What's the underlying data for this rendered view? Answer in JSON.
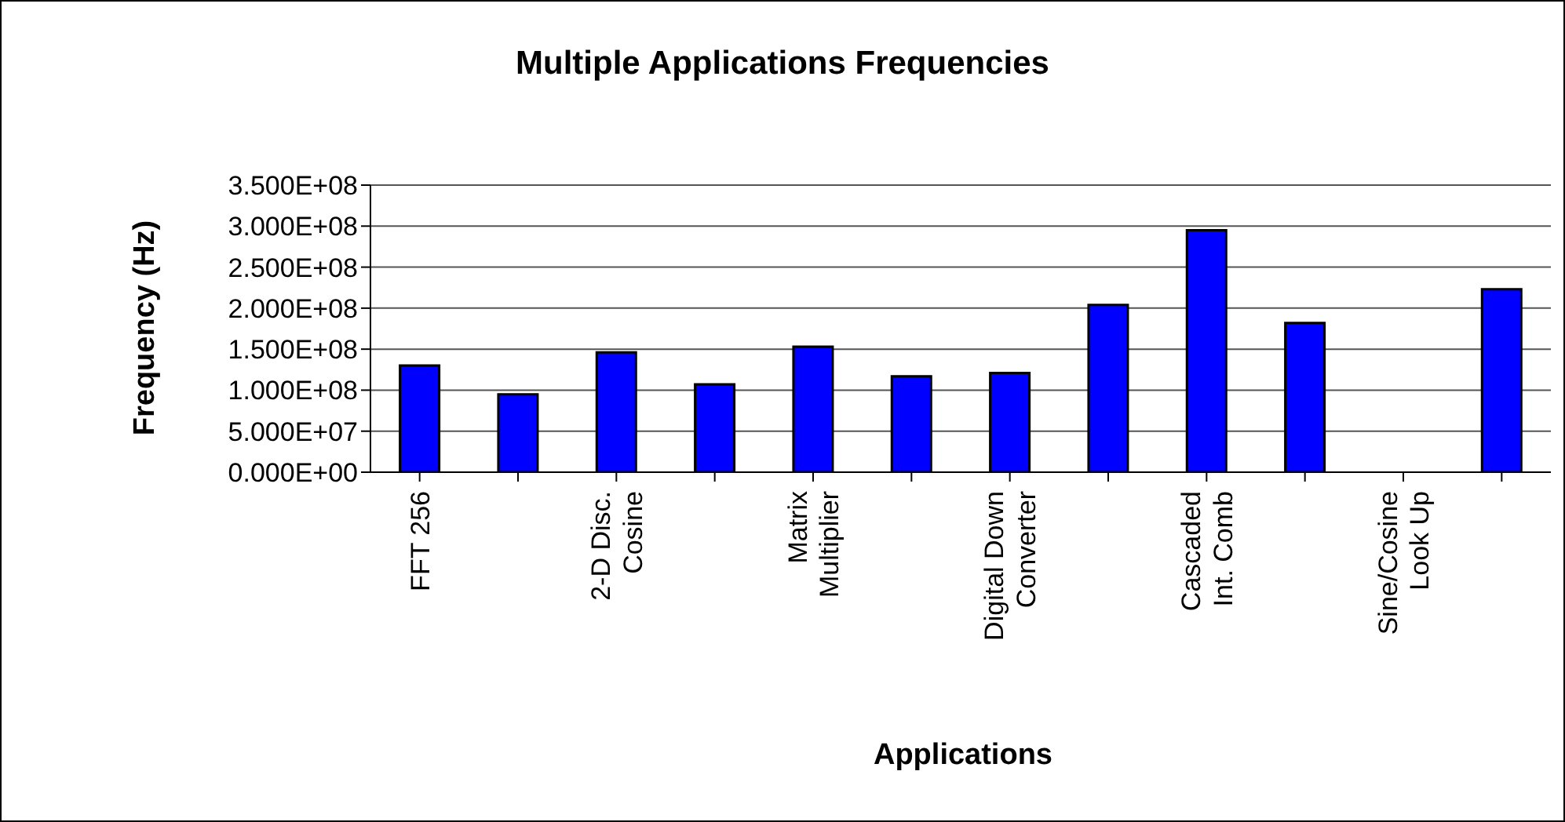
{
  "chart_data": {
    "type": "bar",
    "title": "Multiple Applications Frequencies",
    "xlabel": "Applications",
    "ylabel": "Frequency (Hz)",
    "categories": [
      "FFT 256",
      null,
      "2-D Disc. Cosine",
      null,
      "Matrix Multiplier",
      null,
      "Digital Down Converter",
      null,
      "Cascaded Int. Comb",
      null,
      "Sine/Cosine Look Up",
      null
    ],
    "values": [
      130000000.0,
      95000000.0,
      146000000.0,
      107000000.0,
      153000000.0,
      117000000.0,
      121000000.0,
      204000000.0,
      295000000.0,
      182000000.0,
      null,
      223000000.0
    ],
    "color": "#0000ff",
    "ylim": [
      0,
      350000000.0
    ],
    "yticks": [
      {
        "value": 0,
        "label": "0.000E+00"
      },
      {
        "value": 50000000.0,
        "label": "5.000E+07"
      },
      {
        "value": 100000000.0,
        "label": "1.000E+08"
      },
      {
        "value": 150000000.0,
        "label": "1.500E+08"
      },
      {
        "value": 200000000.0,
        "label": "2.000E+08"
      },
      {
        "value": 250000000.0,
        "label": "2.500E+08"
      },
      {
        "value": 300000000.0,
        "label": "3.000E+08"
      },
      {
        "value": 350000000.0,
        "label": "3.500E+08"
      }
    ],
    "grid": "y"
  }
}
